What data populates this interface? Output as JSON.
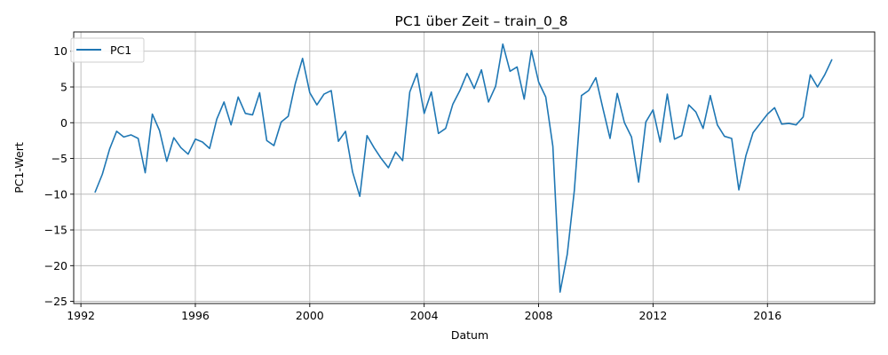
{
  "chart_data": {
    "type": "line",
    "title": "PC1 über Zeit – train_0_8",
    "xlabel": "Datum",
    "ylabel": "PC1-Wert",
    "grid": true,
    "legend_position": "top-left",
    "xlim": [
      "1991-10-01",
      "2019-10-01"
    ],
    "ylim": [
      -25.3,
      12.7
    ],
    "x_ticks": [
      "1992",
      "1996",
      "2000",
      "2004",
      "2008",
      "2012",
      "2016"
    ],
    "y_ticks": [
      10,
      5,
      0,
      -5,
      -10,
      -15,
      -20,
      -25
    ],
    "series": [
      {
        "name": "PC1",
        "color": "#1f77b4",
        "x": [
          "1992-07-01",
          "1992-10-01",
          "1993-01-01",
          "1993-04-01",
          "1993-07-01",
          "1993-10-01",
          "1994-01-01",
          "1994-04-01",
          "1994-07-01",
          "1994-10-01",
          "1995-01-01",
          "1995-04-01",
          "1995-07-01",
          "1995-10-01",
          "1996-01-01",
          "1996-04-01",
          "1996-07-01",
          "1996-10-01",
          "1997-01-01",
          "1997-04-01",
          "1997-07-01",
          "1997-10-01",
          "1998-01-01",
          "1998-04-01",
          "1998-07-01",
          "1998-10-01",
          "1999-01-01",
          "1999-04-01",
          "1999-07-01",
          "1999-10-01",
          "2000-01-01",
          "2000-04-01",
          "2000-07-01",
          "2000-10-01",
          "2001-01-01",
          "2001-04-01",
          "2001-07-01",
          "2001-10-01",
          "2002-01-01",
          "2002-04-01",
          "2002-07-01",
          "2002-10-01",
          "2003-01-01",
          "2003-04-01",
          "2003-07-01",
          "2003-10-01",
          "2004-01-01",
          "2004-04-01",
          "2004-07-01",
          "2004-10-01",
          "2005-01-01",
          "2005-04-01",
          "2005-07-01",
          "2005-10-01",
          "2006-01-01",
          "2006-04-01",
          "2006-07-01",
          "2006-10-01",
          "2007-01-01",
          "2007-04-01",
          "2007-07-01",
          "2007-10-01",
          "2008-01-01",
          "2008-04-01",
          "2008-07-01",
          "2008-10-01",
          "2009-01-01",
          "2009-04-01",
          "2009-07-01",
          "2009-10-01",
          "2010-01-01",
          "2010-04-01",
          "2010-07-01",
          "2010-10-01",
          "2011-01-01",
          "2011-04-01",
          "2011-07-01",
          "2011-10-01",
          "2012-01-01",
          "2012-04-01",
          "2012-07-01",
          "2012-10-01",
          "2013-01-01",
          "2013-04-01",
          "2013-07-01",
          "2013-10-01",
          "2014-01-01",
          "2014-04-01",
          "2014-07-01",
          "2014-10-01",
          "2015-01-01",
          "2015-04-01",
          "2015-07-01",
          "2015-10-01",
          "2016-01-01",
          "2016-04-01",
          "2016-07-01",
          "2016-10-01",
          "2017-01-01",
          "2017-04-01",
          "2017-07-01",
          "2017-10-01",
          "2018-01-01",
          "2018-04-01"
        ],
        "values": [
          -9.7,
          -7.2,
          -3.7,
          -1.2,
          -2.0,
          -1.7,
          -2.2,
          -7.0,
          1.2,
          -1.1,
          -5.4,
          -2.1,
          -3.5,
          -4.4,
          -2.3,
          -2.7,
          -3.6,
          0.5,
          2.9,
          -0.3,
          3.6,
          1.3,
          1.1,
          4.2,
          -2.5,
          -3.2,
          0.1,
          0.9,
          5.5,
          9.0,
          4.2,
          2.5,
          4.0,
          4.5,
          -2.6,
          -1.2,
          -6.9,
          -10.3,
          -1.8,
          -3.5,
          -5.0,
          -6.3,
          -4.1,
          -5.3,
          4.3,
          6.9,
          1.3,
          4.3,
          -1.5,
          -0.8,
          2.6,
          4.5,
          6.9,
          4.8,
          7.4,
          2.9,
          5.1,
          11.0,
          7.2,
          7.8,
          3.3,
          10.1,
          5.7,
          3.6,
          -3.3,
          -23.7,
          -18.4,
          -9.5,
          3.8,
          4.5,
          6.3,
          2.0,
          -2.2,
          4.1,
          0.0,
          -2.0,
          -8.3,
          0.1,
          1.8,
          -2.7,
          4.0,
          -2.3,
          -1.8,
          2.5,
          1.5,
          -0.8,
          3.8,
          -0.3,
          -1.9,
          -2.2,
          -9.4,
          -4.6,
          -1.4,
          -0.1,
          1.2,
          2.1,
          -0.2,
          -0.1,
          -0.3,
          0.8,
          6.7,
          5.0,
          6.7,
          8.8
        ]
      }
    ]
  }
}
